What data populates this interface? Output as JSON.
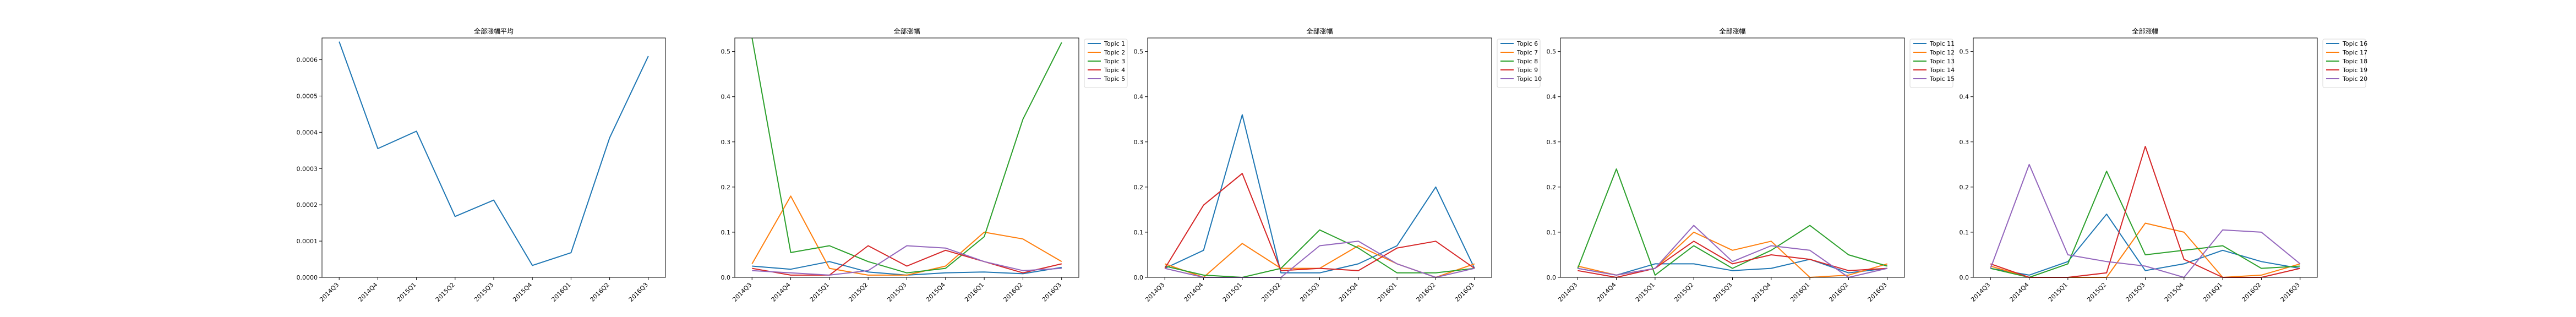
{
  "chart_data": [
    {
      "type": "line",
      "title": "全部涨幅平均",
      "categories": [
        "2014Q3",
        "2014Q4",
        "2015Q1",
        "2015Q2",
        "2015Q3",
        "2015Q4",
        "2016Q1",
        "2016Q2",
        "2016Q3"
      ],
      "ylim": [
        0,
        0.00066
      ],
      "yticks": [
        "0.0000",
        "0.0001",
        "0.0002",
        "0.0003",
        "0.0004",
        "0.0005",
        "0.0006"
      ],
      "ytick_values": [
        0,
        0.0001,
        0.0002,
        0.0003,
        0.0004,
        0.0005,
        0.0006
      ],
      "legend": "none",
      "series": [
        {
          "values": [
            0.00065,
            0.000355,
            0.000403,
            0.000168,
            0.000213,
            3.3e-05,
            6.8e-05,
            0.000385,
            0.00061
          ],
          "color": "#1f77b4"
        }
      ]
    },
    {
      "type": "line",
      "title": "全部涨幅",
      "categories": [
        "2014Q3",
        "2014Q4",
        "2015Q1",
        "2015Q2",
        "2015Q3",
        "2015Q4",
        "2016Q1",
        "2016Q2",
        "2016Q3"
      ],
      "ylim": [
        0,
        0.53
      ],
      "yticks": [
        "0.0",
        "0.1",
        "0.2",
        "0.3",
        "0.4",
        "0.5"
      ],
      "ytick_values": [
        0,
        0.1,
        0.2,
        0.3,
        0.4,
        0.5
      ],
      "legend": "upper right, outside",
      "series": [
        {
          "name": "Topic 1",
          "color": "#1f77b4",
          "values": [
            0.025,
            0.018,
            0.035,
            0.012,
            0.005,
            0.01,
            0.012,
            0.008,
            0.022
          ]
        },
        {
          "name": "Topic 2",
          "color": "#ff7f0e",
          "values": [
            0.03,
            0.18,
            0.02,
            0.005,
            0.005,
            0.025,
            0.1,
            0.085,
            0.035
          ]
        },
        {
          "name": "Topic 3",
          "color": "#2ca02c",
          "values": [
            0.53,
            0.055,
            0.07,
            0.035,
            0.01,
            0.02,
            0.09,
            0.35,
            0.52
          ]
        },
        {
          "name": "Topic 4",
          "color": "#d62728",
          "values": [
            0.02,
            0.005,
            0.005,
            0.07,
            0.025,
            0.06,
            0.035,
            0.01,
            0.03
          ]
        },
        {
          "name": "Topic 5",
          "color": "#9467bd",
          "values": [
            0.015,
            0.01,
            0.005,
            0.015,
            0.07,
            0.065,
            0.035,
            0.015,
            0.02
          ]
        }
      ]
    },
    {
      "type": "line",
      "title": "全部涨幅",
      "categories": [
        "2014Q3",
        "2014Q4",
        "2015Q1",
        "2015Q2",
        "2015Q3",
        "2015Q4",
        "2016Q1",
        "2016Q2",
        "2016Q3"
      ],
      "ylim": [
        0,
        0.53
      ],
      "yticks": [
        "0.0",
        "0.1",
        "0.2",
        "0.3",
        "0.4",
        "0.5"
      ],
      "ytick_values": [
        0,
        0.1,
        0.2,
        0.3,
        0.4,
        0.5
      ],
      "legend": "upper right, outside",
      "series": [
        {
          "name": "Topic 6",
          "color": "#1f77b4",
          "values": [
            0.02,
            0.06,
            0.36,
            0.01,
            0.01,
            0.03,
            0.07,
            0.2,
            0.02
          ]
        },
        {
          "name": "Topic 7",
          "color": "#ff7f0e",
          "values": [
            0.03,
            0.0,
            0.075,
            0.02,
            0.02,
            0.07,
            0.03,
            0.0,
            0.03
          ]
        },
        {
          "name": "Topic 8",
          "color": "#2ca02c",
          "values": [
            0.025,
            0.005,
            0.0,
            0.02,
            0.105,
            0.065,
            0.01,
            0.01,
            0.02
          ]
        },
        {
          "name": "Topic 9",
          "color": "#d62728",
          "values": [
            0.02,
            0.16,
            0.23,
            0.015,
            0.02,
            0.015,
            0.065,
            0.08,
            0.02
          ]
        },
        {
          "name": "Topic 10",
          "color": "#9467bd",
          "values": [
            0.02,
            0.0,
            0.0,
            0.0,
            0.07,
            0.08,
            0.03,
            0.0,
            0.02
          ]
        }
      ]
    },
    {
      "type": "line",
      "title": "全部涨幅",
      "categories": [
        "2014Q3",
        "2014Q4",
        "2015Q1",
        "2015Q2",
        "2015Q3",
        "2015Q4",
        "2016Q1",
        "2016Q2",
        "2016Q3"
      ],
      "ylim": [
        0,
        0.53
      ],
      "yticks": [
        "0.0",
        "0.1",
        "0.2",
        "0.3",
        "0.4",
        "0.5"
      ],
      "ytick_values": [
        0,
        0.1,
        0.2,
        0.3,
        0.4,
        0.5
      ],
      "legend": "upper right, outside",
      "series": [
        {
          "name": "Topic 11",
          "color": "#1f77b4",
          "values": [
            0.02,
            0.005,
            0.03,
            0.03,
            0.015,
            0.02,
            0.04,
            0.01,
            0.02
          ]
        },
        {
          "name": "Topic 12",
          "color": "#ff7f0e",
          "values": [
            0.025,
            0.005,
            0.02,
            0.1,
            0.06,
            0.08,
            0.0,
            0.005,
            0.03
          ]
        },
        {
          "name": "Topic 13",
          "color": "#2ca02c",
          "values": [
            0.02,
            0.24,
            0.005,
            0.07,
            0.02,
            0.06,
            0.115,
            0.05,
            0.025
          ]
        },
        {
          "name": "Topic 14",
          "color": "#d62728",
          "values": [
            0.015,
            0.0,
            0.02,
            0.08,
            0.03,
            0.05,
            0.04,
            0.015,
            0.02
          ]
        },
        {
          "name": "Topic 15",
          "color": "#9467bd",
          "values": [
            0.02,
            0.005,
            0.02,
            0.115,
            0.035,
            0.07,
            0.06,
            0.0,
            0.02
          ]
        }
      ]
    },
    {
      "type": "line",
      "title": "全部涨幅",
      "categories": [
        "2014Q3",
        "2014Q4",
        "2015Q1",
        "2015Q2",
        "2015Q3",
        "2015Q4",
        "2016Q1",
        "2016Q2",
        "2016Q3"
      ],
      "ylim": [
        0,
        0.53
      ],
      "yticks": [
        "0.0",
        "0.1",
        "0.2",
        "0.3",
        "0.4",
        "0.5"
      ],
      "ytick_values": [
        0,
        0.1,
        0.2,
        0.3,
        0.4,
        0.5
      ],
      "legend": "upper right, outside",
      "series": [
        {
          "name": "Topic 16",
          "color": "#1f77b4",
          "values": [
            0.02,
            0.005,
            0.035,
            0.14,
            0.015,
            0.03,
            0.06,
            0.035,
            0.02
          ]
        },
        {
          "name": "Topic 17",
          "color": "#ff7f0e",
          "values": [
            0.025,
            0.0,
            0.0,
            0.0,
            0.12,
            0.1,
            0.0,
            0.005,
            0.03
          ]
        },
        {
          "name": "Topic 18",
          "color": "#2ca02c",
          "values": [
            0.02,
            0.0,
            0.03,
            0.235,
            0.05,
            0.06,
            0.07,
            0.02,
            0.025
          ]
        },
        {
          "name": "Topic 19",
          "color": "#d62728",
          "values": [
            0.03,
            0.0,
            0.0,
            0.01,
            0.29,
            0.04,
            0.0,
            0.0,
            0.02
          ]
        },
        {
          "name": "Topic 20",
          "color": "#9467bd",
          "values": [
            0.02,
            0.25,
            0.05,
            0.035,
            0.025,
            0.0,
            0.105,
            0.1,
            0.03
          ]
        }
      ]
    }
  ]
}
